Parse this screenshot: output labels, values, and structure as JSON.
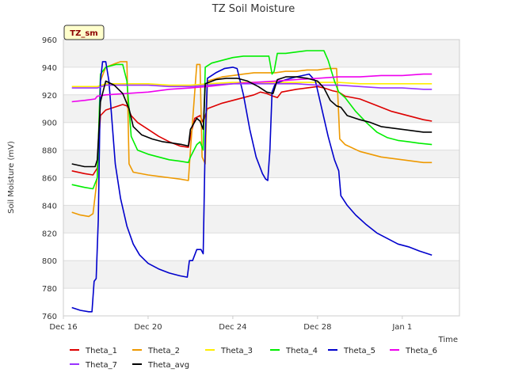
{
  "chart_data": {
    "type": "line",
    "title": "TZ Soil Moisture",
    "xlabel": "Time",
    "ylabel": "Soil Moisture (mV)",
    "badge": "TZ_sm",
    "ylim": [
      760,
      960
    ],
    "yticks": [
      760,
      780,
      800,
      820,
      840,
      860,
      880,
      900,
      920,
      940,
      960
    ],
    "xlim": [
      0,
      18.7
    ],
    "xticks": [
      {
        "label": "Dec 16",
        "x": 0
      },
      {
        "label": "Dec 20",
        "x": 4
      },
      {
        "label": "Dec 24",
        "x": 8
      },
      {
        "label": "Dec 28",
        "x": 12
      },
      {
        "label": "Jan 1",
        "x": 16
      }
    ],
    "grid": true,
    "legend_position": "bottom",
    "series": [
      {
        "name": "Theta_1",
        "color": "#dd0000",
        "points": [
          [
            0.4,
            865
          ],
          [
            1.0,
            863
          ],
          [
            1.4,
            862
          ],
          [
            1.6,
            867
          ],
          [
            1.75,
            905
          ],
          [
            2.0,
            909
          ],
          [
            2.4,
            911
          ],
          [
            2.8,
            913
          ],
          [
            3.0,
            912
          ],
          [
            3.2,
            905
          ],
          [
            3.5,
            900
          ],
          [
            4.0,
            895
          ],
          [
            4.5,
            890
          ],
          [
            5.0,
            886
          ],
          [
            5.5,
            883
          ],
          [
            5.9,
            882
          ],
          [
            6.0,
            890
          ],
          [
            6.2,
            903
          ],
          [
            6.45,
            905
          ],
          [
            6.6,
            900
          ],
          [
            6.8,
            910
          ],
          [
            7.5,
            914
          ],
          [
            8.0,
            916
          ],
          [
            8.5,
            918
          ],
          [
            9.0,
            920
          ],
          [
            9.3,
            922
          ],
          [
            9.6,
            921
          ],
          [
            9.9,
            919
          ],
          [
            10.1,
            918
          ],
          [
            10.3,
            922
          ],
          [
            11.0,
            924
          ],
          [
            11.5,
            925
          ],
          [
            12.0,
            926
          ],
          [
            12.3,
            925
          ],
          [
            12.5,
            924
          ],
          [
            12.7,
            923
          ],
          [
            13.0,
            922
          ],
          [
            13.3,
            919
          ],
          [
            14.0,
            917
          ],
          [
            14.5,
            914
          ],
          [
            15.0,
            911
          ],
          [
            15.5,
            908
          ],
          [
            16.0,
            906
          ],
          [
            16.5,
            904
          ],
          [
            17.0,
            902
          ],
          [
            17.4,
            901
          ]
        ]
      },
      {
        "name": "Theta_2",
        "color": "#ee9900",
        "points": [
          [
            0.4,
            835
          ],
          [
            0.8,
            833
          ],
          [
            1.2,
            832
          ],
          [
            1.4,
            834
          ],
          [
            1.6,
            860
          ],
          [
            1.75,
            930
          ],
          [
            2.0,
            940
          ],
          [
            2.5,
            943
          ],
          [
            2.7,
            944
          ],
          [
            3.0,
            944
          ],
          [
            3.1,
            870
          ],
          [
            3.3,
            864
          ],
          [
            4.0,
            862
          ],
          [
            4.5,
            861
          ],
          [
            5.0,
            860
          ],
          [
            5.5,
            859
          ],
          [
            5.9,
            858
          ],
          [
            6.0,
            880
          ],
          [
            6.3,
            942
          ],
          [
            6.45,
            942
          ],
          [
            6.55,
            875
          ],
          [
            6.7,
            870
          ],
          [
            6.8,
            930
          ],
          [
            7.5,
            933
          ],
          [
            8.0,
            934
          ],
          [
            8.5,
            935
          ],
          [
            9.0,
            936
          ],
          [
            9.5,
            936
          ],
          [
            10.0,
            936
          ],
          [
            10.5,
            937
          ],
          [
            11.0,
            937
          ],
          [
            11.5,
            938
          ],
          [
            12.0,
            938
          ],
          [
            12.5,
            939
          ],
          [
            12.9,
            939
          ],
          [
            13.05,
            888
          ],
          [
            13.3,
            884
          ],
          [
            14.0,
            879
          ],
          [
            14.5,
            877
          ],
          [
            15.0,
            875
          ],
          [
            15.5,
            874
          ],
          [
            16.0,
            873
          ],
          [
            16.5,
            872
          ],
          [
            17.0,
            871
          ],
          [
            17.4,
            871
          ]
        ]
      },
      {
        "name": "Theta_3",
        "color": "#ffee00",
        "points": [
          [
            0.4,
            926
          ],
          [
            1.0,
            926
          ],
          [
            1.6,
            926
          ],
          [
            2.0,
            928
          ],
          [
            3.0,
            928
          ],
          [
            4.0,
            928
          ],
          [
            5.0,
            927
          ],
          [
            6.0,
            927
          ],
          [
            6.8,
            928
          ],
          [
            8.0,
            929
          ],
          [
            9.0,
            929
          ],
          [
            10.0,
            929
          ],
          [
            11.0,
            929
          ],
          [
            12.0,
            929
          ],
          [
            13.0,
            929
          ],
          [
            14.0,
            928
          ],
          [
            15.0,
            928
          ],
          [
            16.0,
            928
          ],
          [
            17.0,
            928
          ],
          [
            17.4,
            928
          ]
        ]
      },
      {
        "name": "Theta_4",
        "color": "#00ee00",
        "points": [
          [
            0.4,
            855
          ],
          [
            1.0,
            853
          ],
          [
            1.4,
            852
          ],
          [
            1.6,
            860
          ],
          [
            1.75,
            935
          ],
          [
            2.0,
            940
          ],
          [
            2.5,
            942
          ],
          [
            2.8,
            942
          ],
          [
            3.0,
            930
          ],
          [
            3.2,
            890
          ],
          [
            3.5,
            880
          ],
          [
            4.0,
            877
          ],
          [
            4.5,
            875
          ],
          [
            5.0,
            873
          ],
          [
            5.5,
            872
          ],
          [
            5.9,
            871
          ],
          [
            6.0,
            875
          ],
          [
            6.3,
            884
          ],
          [
            6.45,
            886
          ],
          [
            6.6,
            880
          ],
          [
            6.7,
            940
          ],
          [
            7.0,
            943
          ],
          [
            7.5,
            945
          ],
          [
            8.0,
            947
          ],
          [
            8.5,
            948
          ],
          [
            9.0,
            948
          ],
          [
            9.5,
            948
          ],
          [
            9.7,
            948
          ],
          [
            9.85,
            935
          ],
          [
            9.95,
            937
          ],
          [
            10.1,
            950
          ],
          [
            10.5,
            950
          ],
          [
            11.0,
            951
          ],
          [
            11.5,
            952
          ],
          [
            12.0,
            952
          ],
          [
            12.3,
            952
          ],
          [
            12.5,
            945
          ],
          [
            12.8,
            930
          ],
          [
            13.0,
            922
          ],
          [
            13.3,
            918
          ],
          [
            13.8,
            908
          ],
          [
            14.3,
            900
          ],
          [
            14.8,
            893
          ],
          [
            15.3,
            889
          ],
          [
            15.8,
            887
          ],
          [
            16.3,
            886
          ],
          [
            16.8,
            885
          ],
          [
            17.4,
            884
          ]
        ]
      },
      {
        "name": "Theta_5",
        "color": "#0000cc",
        "points": [
          [
            0.4,
            766
          ],
          [
            0.8,
            764
          ],
          [
            1.2,
            763
          ],
          [
            1.35,
            763
          ],
          [
            1.45,
            785
          ],
          [
            1.55,
            787
          ],
          [
            1.65,
            830
          ],
          [
            1.75,
            930
          ],
          [
            1.85,
            944
          ],
          [
            2.0,
            944
          ],
          [
            2.15,
            930
          ],
          [
            2.3,
            900
          ],
          [
            2.45,
            870
          ],
          [
            2.7,
            845
          ],
          [
            3.0,
            825
          ],
          [
            3.3,
            812
          ],
          [
            3.6,
            804
          ],
          [
            4.0,
            798
          ],
          [
            4.5,
            794
          ],
          [
            5.0,
            791
          ],
          [
            5.5,
            789
          ],
          [
            5.85,
            788
          ],
          [
            5.95,
            800
          ],
          [
            6.1,
            800
          ],
          [
            6.3,
            808
          ],
          [
            6.5,
            808
          ],
          [
            6.6,
            805
          ],
          [
            6.7,
            888
          ],
          [
            6.8,
            932
          ],
          [
            7.2,
            936
          ],
          [
            7.6,
            939
          ],
          [
            8.0,
            940
          ],
          [
            8.2,
            939
          ],
          [
            8.5,
            920
          ],
          [
            8.8,
            895
          ],
          [
            9.1,
            875
          ],
          [
            9.4,
            863
          ],
          [
            9.55,
            859
          ],
          [
            9.65,
            858
          ],
          [
            9.75,
            880
          ],
          [
            9.85,
            922
          ],
          [
            10.0,
            928
          ],
          [
            10.5,
            931
          ],
          [
            11.0,
            933
          ],
          [
            11.3,
            934
          ],
          [
            11.6,
            935
          ],
          [
            11.9,
            930
          ],
          [
            12.2,
            910
          ],
          [
            12.5,
            890
          ],
          [
            12.8,
            873
          ],
          [
            13.0,
            865
          ],
          [
            13.1,
            847
          ],
          [
            13.4,
            840
          ],
          [
            13.8,
            833
          ],
          [
            14.3,
            826
          ],
          [
            14.8,
            820
          ],
          [
            15.3,
            816
          ],
          [
            15.8,
            812
          ],
          [
            16.3,
            810
          ],
          [
            16.8,
            807
          ],
          [
            17.4,
            804
          ]
        ]
      },
      {
        "name": "Theta_6",
        "color": "#ee00ee",
        "points": [
          [
            0.4,
            915
          ],
          [
            1.0,
            916
          ],
          [
            1.5,
            917
          ],
          [
            1.6,
            919
          ],
          [
            2.0,
            920
          ],
          [
            3.0,
            921
          ],
          [
            4.0,
            922
          ],
          [
            5.0,
            924
          ],
          [
            6.0,
            925
          ],
          [
            6.8,
            926
          ],
          [
            8.0,
            928
          ],
          [
            9.0,
            929
          ],
          [
            10.0,
            930
          ],
          [
            11.0,
            931
          ],
          [
            12.0,
            932
          ],
          [
            13.0,
            933
          ],
          [
            14.0,
            933
          ],
          [
            15.0,
            934
          ],
          [
            16.0,
            934
          ],
          [
            17.0,
            935
          ],
          [
            17.4,
            935
          ]
        ]
      },
      {
        "name": "Theta_7",
        "color": "#9933ff",
        "points": [
          [
            0.4,
            925
          ],
          [
            1.0,
            925
          ],
          [
            1.6,
            925
          ],
          [
            2.0,
            927
          ],
          [
            3.0,
            927
          ],
          [
            4.0,
            927
          ],
          [
            5.0,
            926
          ],
          [
            6.0,
            926
          ],
          [
            6.8,
            927
          ],
          [
            8.0,
            928
          ],
          [
            9.0,
            928
          ],
          [
            10.0,
            928
          ],
          [
            11.0,
            928
          ],
          [
            12.0,
            927
          ],
          [
            13.0,
            927
          ],
          [
            14.0,
            926
          ],
          [
            15.0,
            925
          ],
          [
            16.0,
            925
          ],
          [
            17.0,
            924
          ],
          [
            17.4,
            924
          ]
        ]
      },
      {
        "name": "Theta_avg",
        "color": "#000000",
        "points": [
          [
            0.4,
            870
          ],
          [
            1.0,
            868
          ],
          [
            1.5,
            868
          ],
          [
            1.6,
            873
          ],
          [
            1.75,
            915
          ],
          [
            2.0,
            930
          ],
          [
            2.4,
            927
          ],
          [
            2.8,
            921
          ],
          [
            3.1,
            910
          ],
          [
            3.3,
            897
          ],
          [
            3.7,
            891
          ],
          [
            4.2,
            888
          ],
          [
            4.7,
            886
          ],
          [
            5.2,
            885
          ],
          [
            5.6,
            884
          ],
          [
            5.9,
            883
          ],
          [
            6.0,
            895
          ],
          [
            6.3,
            903
          ],
          [
            6.45,
            901
          ],
          [
            6.6,
            895
          ],
          [
            6.7,
            928
          ],
          [
            7.2,
            931
          ],
          [
            7.7,
            932
          ],
          [
            8.2,
            932
          ],
          [
            8.7,
            930
          ],
          [
            9.2,
            926
          ],
          [
            9.6,
            922
          ],
          [
            9.9,
            921
          ],
          [
            10.1,
            931
          ],
          [
            10.5,
            933
          ],
          [
            11.0,
            933
          ],
          [
            11.5,
            932
          ],
          [
            12.0,
            930
          ],
          [
            12.3,
            925
          ],
          [
            12.6,
            916
          ],
          [
            12.9,
            912
          ],
          [
            13.1,
            911
          ],
          [
            13.4,
            905
          ],
          [
            14.0,
            902
          ],
          [
            14.5,
            900
          ],
          [
            15.0,
            897
          ],
          [
            15.5,
            896
          ],
          [
            16.0,
            895
          ],
          [
            16.5,
            894
          ],
          [
            17.0,
            893
          ],
          [
            17.4,
            893
          ]
        ]
      }
    ]
  }
}
